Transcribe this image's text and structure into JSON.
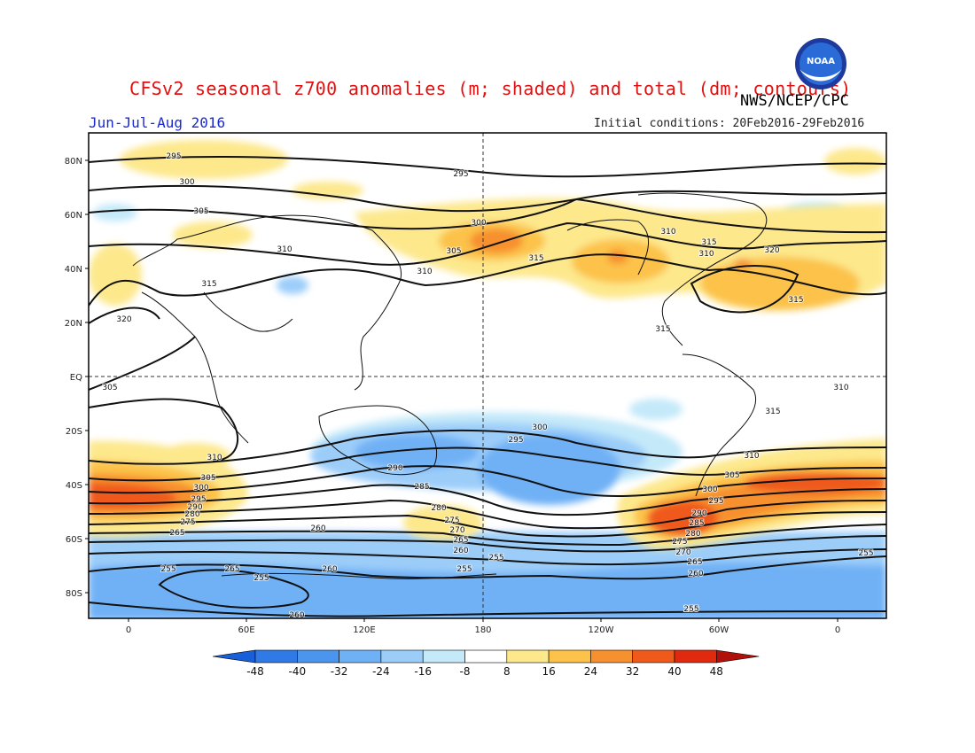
{
  "header": {
    "title": "CFSv2 seasonal z700 anomalies (m; shaded) and total (dm; contours)",
    "agency": "NWS/NCEP/CPC",
    "period": "Jun-Jul-Aug 2016",
    "initial_conditions": "Initial conditions: 20Feb2016-29Feb2016",
    "logo_text": "NOAA"
  },
  "map": {
    "lat_labels": [
      "80N",
      "60N",
      "40N",
      "20N",
      "EQ",
      "20S",
      "40S",
      "60S",
      "80S"
    ],
    "lon_labels": [
      "0",
      "60E",
      "120E",
      "180",
      "120W",
      "60W",
      "0"
    ],
    "contour_labels": [
      {
        "text": "295"
      },
      {
        "text": "300"
      },
      {
        "text": "305"
      },
      {
        "text": "310"
      },
      {
        "text": "315"
      },
      {
        "text": "320"
      },
      {
        "text": "295"
      },
      {
        "text": "300"
      },
      {
        "text": "305"
      },
      {
        "text": "310"
      },
      {
        "text": "315"
      },
      {
        "text": "320"
      },
      {
        "text": "310"
      },
      {
        "text": "315"
      },
      {
        "text": "315"
      },
      {
        "text": "315"
      },
      {
        "text": "310"
      },
      {
        "text": "305"
      },
      {
        "text": "300"
      },
      {
        "text": "295"
      },
      {
        "text": "290"
      },
      {
        "text": "285"
      },
      {
        "text": "280"
      },
      {
        "text": "275"
      },
      {
        "text": "270"
      },
      {
        "text": "265"
      },
      {
        "text": "260"
      },
      {
        "text": "255"
      },
      {
        "text": "260"
      },
      {
        "text": "255"
      },
      {
        "text": "265"
      },
      {
        "text": "255"
      },
      {
        "text": "260"
      },
      {
        "text": "255"
      },
      {
        "text": "260"
      },
      {
        "text": "310"
      },
      {
        "text": "305"
      },
      {
        "text": "300"
      },
      {
        "text": "295"
      },
      {
        "text": "290"
      },
      {
        "text": "285"
      },
      {
        "text": "280"
      },
      {
        "text": "275"
      },
      {
        "text": "270"
      },
      {
        "text": "265"
      },
      {
        "text": "260"
      },
      {
        "text": "255"
      },
      {
        "text": "310"
      },
      {
        "text": "305"
      },
      {
        "text": "300"
      },
      {
        "text": "295"
      },
      {
        "text": "290"
      },
      {
        "text": "280"
      },
      {
        "text": "275"
      },
      {
        "text": "265"
      },
      {
        "text": "260"
      },
      {
        "text": "255"
      },
      {
        "text": "315"
      },
      {
        "text": "310"
      }
    ]
  },
  "colorbar": {
    "labels": [
      "-48",
      "-40",
      "-32",
      "-24",
      "-16",
      "-8",
      "8",
      "16",
      "24",
      "32",
      "40",
      "48"
    ],
    "colors": [
      "#1a5fd8",
      "#2f7ae6",
      "#4b95ef",
      "#6fb1f5",
      "#9ccdf9",
      "#c4e9f9",
      "#ffffff",
      "#fde88c",
      "#fcc24a",
      "#f7902e",
      "#ef5a1a",
      "#df2a10",
      "#b0100a"
    ]
  }
}
